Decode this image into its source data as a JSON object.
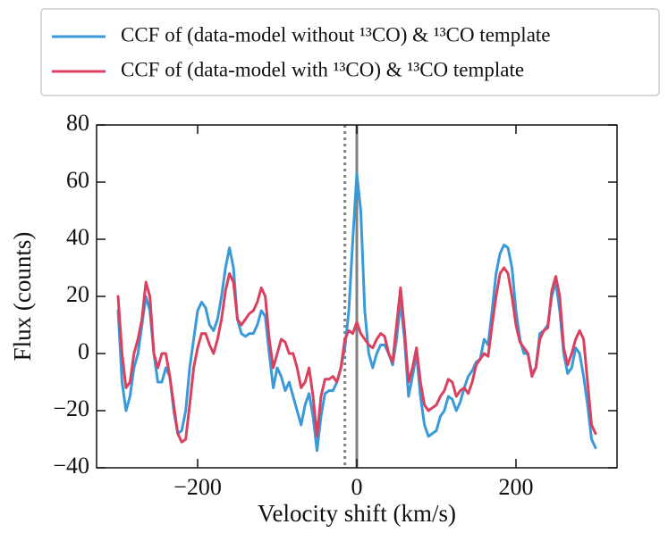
{
  "chart_data": {
    "type": "line",
    "xlabel": "Velocity shift (km/s)",
    "ylabel": "Flux (counts)",
    "xlim": [
      -327,
      327
    ],
    "ylim": [
      -40,
      80
    ],
    "xticks": [
      {
        "value": -200,
        "label": "−200"
      },
      0,
      200
    ],
    "yticks": [
      {
        "value": -40,
        "label": "−40"
      },
      {
        "value": -20,
        "label": "−20"
      },
      0,
      20,
      40,
      60,
      80
    ],
    "legend": "top",
    "vlines": [
      {
        "x": 0,
        "style": "solid",
        "color": "#808080"
      },
      {
        "x": -15,
        "style": "dotted",
        "color": "#808080"
      }
    ],
    "x": [
      -300,
      -295,
      -290,
      -285,
      -280,
      -275,
      -270,
      -265,
      -260,
      -255,
      -250,
      -245,
      -240,
      -235,
      -230,
      -225,
      -220,
      -215,
      -210,
      -205,
      -200,
      -195,
      -190,
      -185,
      -180,
      -175,
      -170,
      -165,
      -160,
      -155,
      -150,
      -145,
      -140,
      -135,
      -130,
      -125,
      -120,
      -115,
      -110,
      -105,
      -100,
      -95,
      -90,
      -85,
      -80,
      -75,
      -70,
      -65,
      -60,
      -55,
      -50,
      -45,
      -40,
      -35,
      -30,
      -25,
      -20,
      -15,
      -10,
      -5,
      0,
      5,
      10,
      15,
      20,
      25,
      30,
      35,
      40,
      45,
      50,
      55,
      60,
      65,
      70,
      75,
      80,
      85,
      90,
      95,
      100,
      105,
      110,
      115,
      120,
      125,
      130,
      135,
      140,
      145,
      150,
      155,
      160,
      165,
      170,
      175,
      180,
      185,
      190,
      195,
      200,
      205,
      210,
      215,
      220,
      225,
      230,
      235,
      240,
      245,
      250,
      255,
      260,
      265,
      270,
      275,
      280,
      285,
      290,
      295,
      300
    ],
    "series": [
      {
        "name": "CCF of (data-model without ¹³CO) & ¹³CO template",
        "color": "#3a9ad9",
        "values": [
          15,
          -10,
          -20,
          -15,
          -5,
          0,
          10,
          20,
          15,
          0,
          -10,
          -10,
          -5,
          -8,
          -20,
          -28,
          -27,
          -20,
          -5,
          5,
          15,
          18,
          16,
          10,
          8,
          12,
          20,
          30,
          37,
          30,
          12,
          7,
          6,
          7,
          7,
          10,
          15,
          13,
          0,
          -12,
          -5,
          -8,
          -13,
          -10,
          -15,
          -20,
          -25,
          -18,
          -14,
          -22,
          -34,
          -22,
          -14,
          -13,
          -13,
          -10,
          -5,
          2,
          15,
          40,
          63,
          50,
          15,
          0,
          -5,
          0,
          3,
          3,
          0,
          -4,
          5,
          18,
          5,
          -15,
          -8,
          0,
          -15,
          -25,
          -29,
          -28,
          -27,
          -22,
          -20,
          -15,
          -16,
          -20,
          -17,
          -12,
          -8,
          -6,
          -3,
          -2,
          5,
          3,
          15,
          28,
          35,
          38,
          37,
          30,
          15,
          5,
          0,
          0,
          -7,
          -5,
          7,
          8,
          10,
          20,
          25,
          15,
          0,
          -7,
          -5,
          2,
          0,
          -8,
          -18,
          -30,
          -33
        ]
      },
      {
        "name": "CCF of (data-model with ¹³CO) & ¹³CO template",
        "color": "#d9415f",
        "values": [
          20,
          0,
          -12,
          -10,
          0,
          5,
          12,
          25,
          20,
          0,
          -5,
          0,
          0,
          -8,
          -18,
          -28,
          -31,
          -30,
          -18,
          -5,
          2,
          7,
          7,
          3,
          0,
          5,
          12,
          22,
          28,
          25,
          12,
          10,
          12,
          14,
          15,
          18,
          23,
          20,
          5,
          -5,
          0,
          5,
          4,
          0,
          0,
          -5,
          -12,
          -10,
          -5,
          -15,
          -29,
          -15,
          -9,
          -9,
          -8,
          -10,
          -5,
          5,
          8,
          7,
          11,
          7,
          5,
          3,
          2,
          5,
          7,
          6,
          0,
          -3,
          10,
          23,
          8,
          -10,
          -5,
          2,
          -10,
          -18,
          -20,
          -19,
          -18,
          -15,
          -13,
          -9,
          -10,
          -15,
          -13,
          -12,
          -14,
          -10,
          -4,
          -2,
          0,
          -1,
          10,
          20,
          28,
          30,
          28,
          20,
          10,
          4,
          2,
          0,
          -8,
          -5,
          5,
          8,
          9,
          22,
          27,
          20,
          2,
          -4,
          0,
          5,
          8,
          5,
          -10,
          -25,
          -28
        ]
      }
    ]
  }
}
